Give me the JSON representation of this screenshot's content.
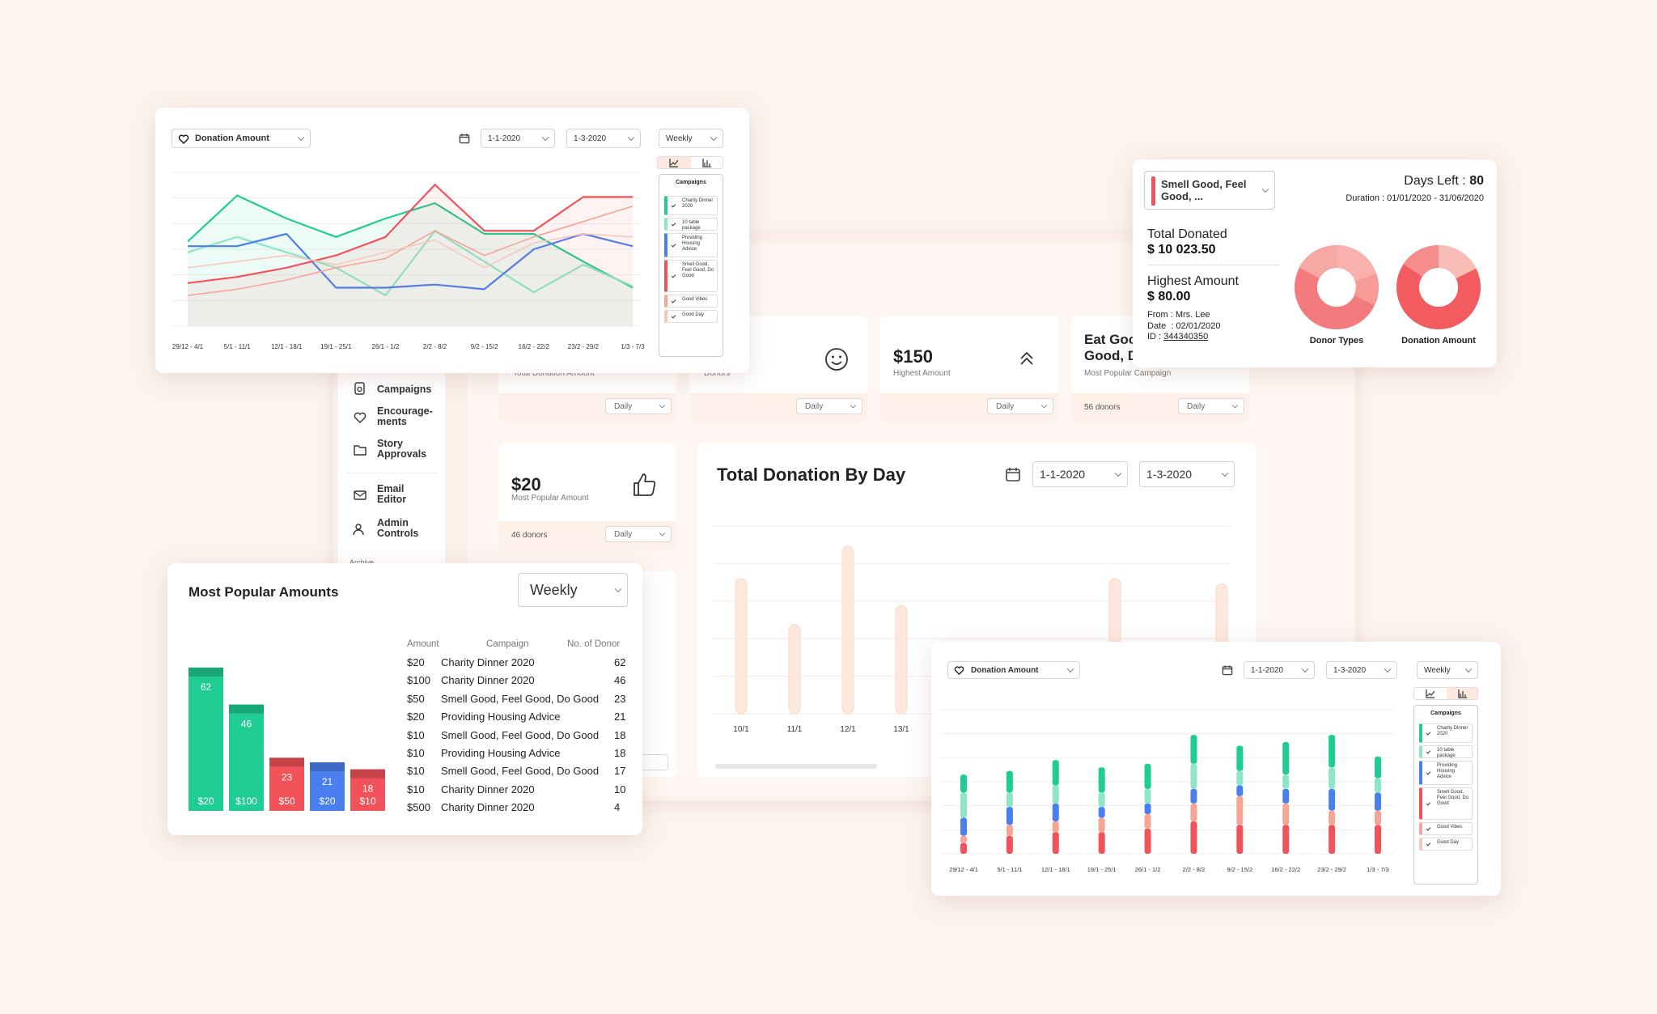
{
  "colors": {
    "green": "#1fcc93",
    "blue": "#4a7ff0",
    "red": "#f2535a",
    "salmon": "#f6a493",
    "bg": "#fdf4ef"
  },
  "sidebar": {
    "items": [
      {
        "label": "Campaigns",
        "icon": "campaigns-icon"
      },
      {
        "label": "Encourage-ments",
        "icon": "heart-hand-icon"
      },
      {
        "label": "Story Approvals",
        "icon": "folder-heart-icon"
      },
      {
        "label": "Email Editor",
        "icon": "mail-icon"
      },
      {
        "label": "Admin Controls",
        "icon": "users-icon"
      }
    ],
    "archive_label": "Archive"
  },
  "stats": {
    "row1": [
      {
        "caption": "Total Donation Amount",
        "period": "Daily"
      },
      {
        "caption": "Donors",
        "period": "Daily"
      },
      {
        "value": "$150",
        "caption": "Highest Amount",
        "period": "Daily"
      },
      {
        "value": "Eat Goo... Good, D...",
        "caption": "Most Popular Campaign",
        "footer": "56 donors",
        "period": "Daily"
      }
    ],
    "popular": {
      "value": "$20",
      "caption": "Most Popular Amount",
      "footer": "46 donors",
      "period": "Daily"
    }
  },
  "by_day": {
    "title": "Total Donation By Day",
    "from": "1-1-2020",
    "to": "1-3-2020"
  },
  "line_card": {
    "metric": "Donation Amount",
    "from": "1-1-2020",
    "to": "1-3-2020",
    "period": "Weekly",
    "campaigns_label": "Campaigns"
  },
  "bar_card": {
    "metric": "Donation Amount",
    "from": "1-1-2020",
    "to": "1-3-2020",
    "period": "Weekly",
    "campaigns_label": "Campaigns"
  },
  "campaigns": [
    {
      "name": "Charity Dinner 2020",
      "color": "#1fcc93"
    },
    {
      "name": "10 table package",
      "color": "#8ee6c6"
    },
    {
      "name": "Providing Housing Advice",
      "color": "#4a7ff0"
    },
    {
      "name": "Smell Good, Feel Good, Do Good",
      "color": "#f2535a"
    },
    {
      "name": "Good Vibes",
      "color": "#f6a493"
    },
    {
      "name": "Good Day",
      "color": "#f8c7bb"
    }
  ],
  "weeks": [
    "29/12 - 4/1",
    "5/1 - 11/1",
    "12/1 - 18/1",
    "19/1 - 25/1",
    "26/1 - 1/2",
    "2/2 - 8/2",
    "9/2 - 15/2",
    "16/2 - 22/2",
    "23/2 - 29/2",
    "1/3 - 7/3"
  ],
  "campaign_detail": {
    "name": "Smell Good, Feel Good, ...",
    "days_left_label": "Days Left :",
    "days_left": "80",
    "duration": "Duration : 01/01/2020 - 31/06/2020",
    "total_label": "Total Donated",
    "total": "$ 10 023.50",
    "highest_label": "Highest Amount",
    "highest": "$ 80.00",
    "from": "From : Mrs. Lee",
    "date": "Date  : 02/01/2020",
    "id_label": "ID : ",
    "id": "344340350",
    "donut1": "Donor Types",
    "donut2": "Donation Amount"
  },
  "popular_amounts": {
    "title": "Most Popular Amounts",
    "period": "Weekly",
    "headers": [
      "Amount",
      "Campaign",
      "No. of Donor"
    ],
    "rows": [
      [
        "$20",
        "Charity Dinner 2020",
        "62"
      ],
      [
        "$100",
        "Charity Dinner 2020",
        "46"
      ],
      [
        "$50",
        "Smell Good, Feel Good, Do Good",
        "23"
      ],
      [
        "$20",
        "Providing Housing Advice",
        "21"
      ],
      [
        "$10",
        "Smell Good, Feel Good, Do Good",
        "18"
      ],
      [
        "$10",
        "Providing Housing Advice",
        "18"
      ],
      [
        "$10",
        "Smell Good, Feel Good, Do Good",
        "17"
      ],
      [
        "$10",
        "Charity Dinner 2020",
        "10"
      ],
      [
        "$500",
        "Charity Dinner 2020",
        "4"
      ]
    ]
  },
  "chart_data": [
    {
      "type": "line",
      "title": "Donation Amount",
      "categories": [
        "29/12 - 4/1",
        "5/1 - 11/1",
        "12/1 - 18/1",
        "19/1 - 25/1",
        "26/1 - 1/2",
        "2/2 - 8/2",
        "9/2 - 15/2",
        "16/2 - 22/2",
        "23/2 - 29/2",
        "1/3 - 7/3"
      ],
      "series": [
        {
          "name": "Charity Dinner 2020",
          "color": "#1fcc93",
          "values": [
            55,
            85,
            70,
            58,
            70,
            80,
            60,
            60,
            42,
            25
          ]
        },
        {
          "name": "10 table package",
          "color": "#8ee6c6",
          "values": [
            48,
            58,
            48,
            38,
            20,
            62,
            42,
            22,
            40,
            26
          ]
        },
        {
          "name": "Providing Housing Advice",
          "color": "#4a7ff0",
          "values": [
            52,
            52,
            60,
            25,
            25,
            27,
            24,
            50,
            60,
            52
          ]
        },
        {
          "name": "Smell Good, Feel Good, Do Good",
          "color": "#f2535a",
          "values": [
            28,
            32,
            38,
            46,
            58,
            92,
            62,
            62,
            84,
            84
          ]
        },
        {
          "name": "Good Vibes",
          "color": "#f6a493",
          "values": [
            20,
            24,
            30,
            38,
            44,
            62,
            46,
            58,
            68,
            78
          ]
        },
        {
          "name": "Good Day",
          "color": "#f8c7bb",
          "values": [
            38,
            42,
            46,
            40,
            48,
            56,
            38,
            54,
            60,
            58
          ]
        }
      ],
      "ylim": [
        0,
        100
      ]
    },
    {
      "type": "bar",
      "title": "Total Donation By Day",
      "categories": [
        "10/1",
        "11/1",
        "12/1",
        "13/1",
        "",
        "",
        "",
        "",
        "",
        ""
      ],
      "values": [
        50,
        33,
        62,
        40,
        0,
        0,
        0,
        50,
        12,
        48
      ],
      "ylim": [
        0,
        70
      ]
    },
    {
      "type": "bar",
      "title": "Donation Amount",
      "stacked": true,
      "categories": [
        "29/12 - 4/1",
        "5/1 - 11/1",
        "12/1 - 18/1",
        "19/1 - 25/1",
        "26/1 - 1/2",
        "2/2 - 8/2",
        "9/2 - 15/2",
        "16/2 - 22/2",
        "23/2 - 29/2",
        "1/3 - 7/3"
      ],
      "series": [
        {
          "name": "Charity Dinner 2020",
          "color": "#1fcc93",
          "values": [
            10,
            12,
            14,
            14,
            14,
            16,
            14,
            18,
            18,
            12
          ]
        },
        {
          "name": "10 table package",
          "color": "#8ee6c6",
          "values": [
            14,
            8,
            10,
            8,
            8,
            14,
            8,
            8,
            12,
            8
          ]
        },
        {
          "name": "Providing Housing Advice",
          "color": "#4a7ff0",
          "values": [
            10,
            10,
            10,
            6,
            6,
            8,
            6,
            8,
            12,
            10
          ]
        },
        {
          "name": "Smell Good, Feel Good, Do Good",
          "color": "#f2535a",
          "values": [
            6,
            10,
            12,
            12,
            14,
            18,
            16,
            16,
            16,
            16
          ]
        },
        {
          "name": "Good Vibes",
          "color": "#f6a493",
          "values": [
            4,
            6,
            6,
            8,
            8,
            10,
            16,
            12,
            8,
            8
          ]
        }
      ],
      "ylim": [
        0,
        80
      ]
    },
    {
      "type": "bar",
      "title": "Most Popular Amounts",
      "categories": [
        "$20",
        "$100",
        "$50",
        "$20",
        "$10"
      ],
      "values": [
        62,
        46,
        23,
        21,
        18
      ],
      "colors": [
        "#1fcc93",
        "#1fcc93",
        "#f2535a",
        "#4a7ff0",
        "#f2535a"
      ],
      "ylim": [
        0,
        70
      ]
    }
  ]
}
